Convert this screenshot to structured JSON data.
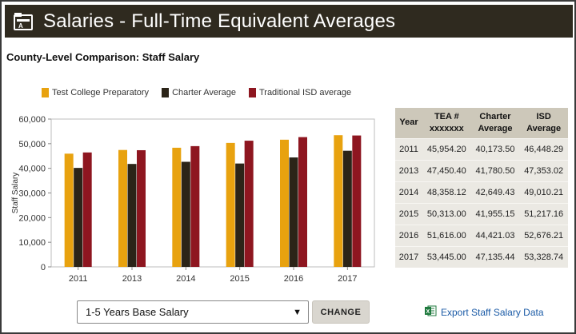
{
  "header": {
    "title": "Salaries - Full-Time Equivalent Averages"
  },
  "subtitle": "County-Level Comparison: Staff Salary",
  "colors": {
    "test": "#e8a20f",
    "charter": "#2b2418",
    "isd": "#8e1620",
    "header_bg": "#2f2a1f"
  },
  "chart_data": {
    "type": "bar",
    "categories": [
      "2011",
      "2013",
      "2014",
      "2015",
      "2016",
      "2017"
    ],
    "series": [
      {
        "name": "Test College Preparatory",
        "values": [
          45954.2,
          47450.4,
          48358.12,
          50313.0,
          51616.0,
          53445.0
        ]
      },
      {
        "name": "Charter Average",
        "values": [
          40173.5,
          41780.5,
          42649.43,
          41955.15,
          44421.03,
          47135.44
        ]
      },
      {
        "name": "Traditional ISD average",
        "values": [
          46448.29,
          47353.02,
          49010.21,
          51217.16,
          52676.21,
          53328.74
        ]
      }
    ],
    "ylabel": "Staff Salary",
    "ylim": [
      0,
      60000
    ],
    "yticks": [
      "0",
      "10,000",
      "20,000",
      "30,000",
      "40,000",
      "50,000",
      "60,000"
    ],
    "legend": "top",
    "grid": false
  },
  "table": {
    "headers": [
      "Year",
      "TEA #\nxxxxxxx",
      "Charter\nAverage",
      "ISD\nAverage"
    ],
    "rows": [
      [
        "2011",
        "45,954.20",
        "40,173.50",
        "46,448.29"
      ],
      [
        "2013",
        "47,450.40",
        "41,780.50",
        "47,353.02"
      ],
      [
        "2014",
        "48,358.12",
        "42,649.43",
        "49,010.21"
      ],
      [
        "2015",
        "50,313.00",
        "41,955.15",
        "51,217.16"
      ],
      [
        "2016",
        "51,616.00",
        "44,421.03",
        "52,676.21"
      ],
      [
        "2017",
        "53,445.00",
        "47,135.44",
        "53,328.74"
      ]
    ]
  },
  "controls": {
    "select_value": "1-5 Years Base Salary",
    "change_label": "CHANGE",
    "export_label": "Export Staff Salary Data"
  }
}
